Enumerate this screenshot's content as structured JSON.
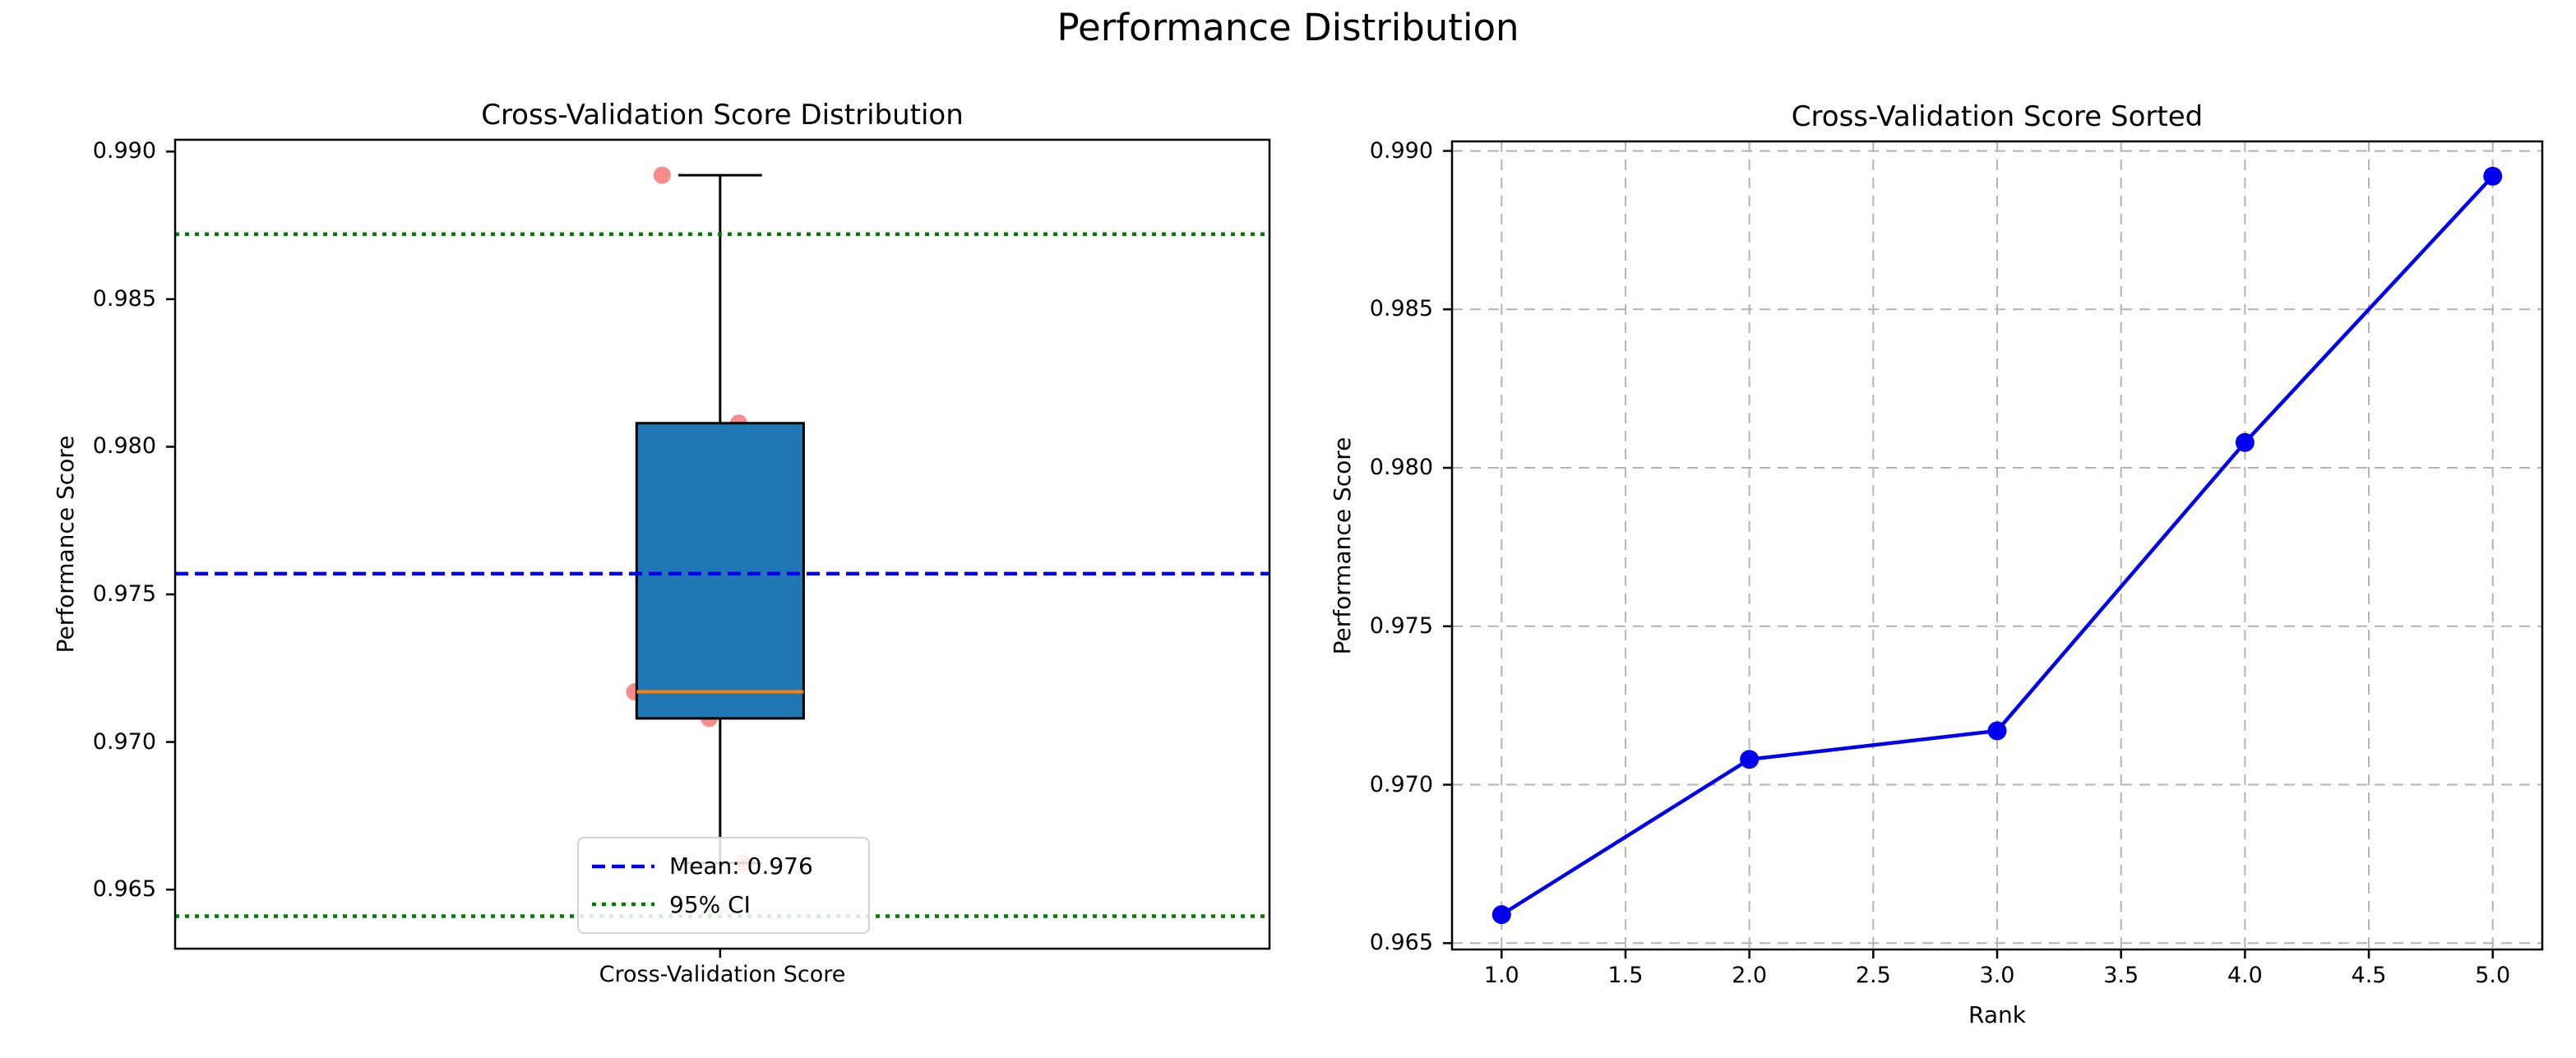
{
  "suptitle": "Performance Distribution",
  "colors": {
    "box_face": "#1f77b4",
    "box_edge": "#000000",
    "median": "#ff7f0e",
    "whisker": "#000000",
    "scatter": "#f76a6a",
    "mean_line": "#0000ee",
    "ci_line": "#008000",
    "series_line": "#0000ee",
    "grid": "#b4b4b4",
    "spine": "#000000",
    "text": "#000000"
  },
  "chart_data": [
    {
      "type": "box",
      "title": "Cross-Validation Score Distribution",
      "ylabel": "Performance Score",
      "xtick_label": "Cross-Validation Score",
      "ylim": [
        0.963,
        0.9904
      ],
      "yticks": [
        0.965,
        0.97,
        0.975,
        0.98,
        0.985,
        0.99
      ],
      "ytick_labels": [
        "0.965",
        "0.970",
        "0.975",
        "0.980",
        "0.985",
        "0.990"
      ],
      "grid": false,
      "box": {
        "q1": 0.9708,
        "median": 0.9717,
        "q3": 0.9808,
        "whisker_low": 0.9659,
        "whisker_high": 0.9892,
        "center_frac": 0.498,
        "half_width_frac": 0.0763,
        "cap_half_width_frac": 0.0383
      },
      "scatter_points": [
        {
          "value": 0.9892,
          "x_frac": 0.445
        },
        {
          "value": 0.9808,
          "x_frac": 0.515
        },
        {
          "value": 0.9717,
          "x_frac": 0.42
        },
        {
          "value": 0.9708,
          "x_frac": 0.488
        },
        {
          "value": 0.9659,
          "x_frac": 0.52
        }
      ],
      "mean_value": 0.9757,
      "ci_low": 0.9641,
      "ci_high": 0.9872,
      "legend": [
        {
          "label": "Mean: 0.976",
          "line_style": "dashed",
          "color": "#0000ee"
        },
        {
          "label": "95% CI",
          "line_style": "dotted",
          "color": "#008000"
        }
      ]
    },
    {
      "type": "line",
      "title": "Cross-Validation Score Sorted",
      "xlabel": "Rank",
      "ylabel": "Performance Score",
      "x": [
        1,
        2,
        3,
        4,
        5
      ],
      "y": [
        0.9659,
        0.9708,
        0.9717,
        0.9808,
        0.9892
      ],
      "xlim": [
        0.8,
        5.2
      ],
      "ylim": [
        0.9648,
        0.9903
      ],
      "xticks": [
        1.0,
        1.5,
        2.0,
        2.5,
        3.0,
        3.5,
        4.0,
        4.5,
        5.0
      ],
      "xtick_labels": [
        "1.0",
        "1.5",
        "2.0",
        "2.5",
        "3.0",
        "3.5",
        "4.0",
        "4.5",
        "5.0"
      ],
      "yticks": [
        0.965,
        0.97,
        0.975,
        0.98,
        0.985,
        0.99
      ],
      "ytick_labels": [
        "0.965",
        "0.970",
        "0.975",
        "0.980",
        "0.985",
        "0.990"
      ],
      "grid": true,
      "legend_position": "none"
    }
  ]
}
